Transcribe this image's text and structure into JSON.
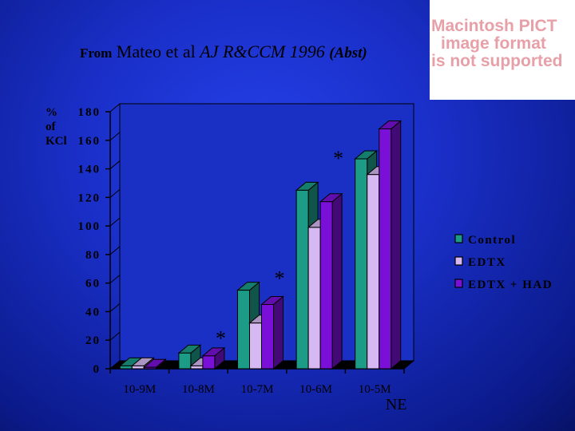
{
  "title": {
    "from": "From",
    "ref": "Mateo et al",
    "journal": "AJ R&CCM 1996",
    "abst": "(Abst)"
  },
  "pict_placeholder": [
    "Macintosh PICT",
    "image format",
    "is not supported"
  ],
  "y_label_lines": [
    "%",
    "of",
    "KCl"
  ],
  "colors": {
    "Control": "#1c9b86",
    "EDTX": "#d6b8f3",
    "EDTX + HAD": "#7a10d8",
    "asterisk": "#000000"
  },
  "chart_data": {
    "type": "bar",
    "categories": [
      "10-9M",
      "10-8M",
      "10-7M",
      "10-6M",
      "10-5M"
    ],
    "series": [
      {
        "name": "Control",
        "values": [
          2,
          11,
          55,
          125,
          147
        ]
      },
      {
        "name": "EDTX",
        "values": [
          2,
          2,
          32,
          99,
          136
        ]
      },
      {
        "name": "EDTX + HAD",
        "values": [
          1,
          9,
          45,
          117,
          168
        ]
      }
    ],
    "ylim": [
      0,
      180
    ],
    "yticks": [
      0,
      20,
      40,
      60,
      80,
      100,
      120,
      140,
      160,
      180
    ],
    "legend_position": "right",
    "annotations": [
      {
        "text": "*",
        "category": "10-8M",
        "value": 22
      },
      {
        "text": "*",
        "category": "10-7M",
        "value": 64
      },
      {
        "text": "*",
        "category": "10-6M",
        "value": 148
      },
      {
        "text": "NE",
        "category": "10-5M",
        "position": "below-axis"
      }
    ],
    "grid": false
  }
}
